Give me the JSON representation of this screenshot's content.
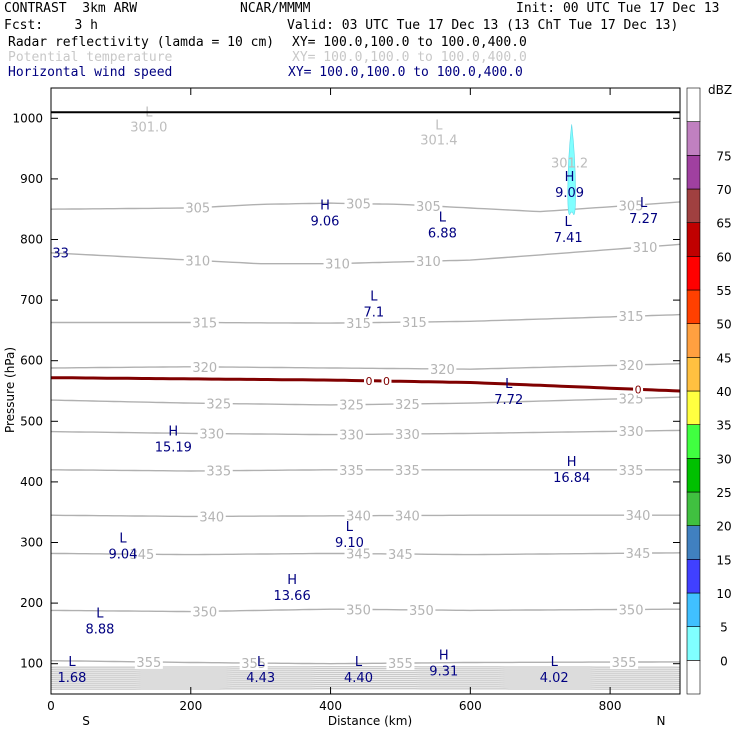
{
  "header": {
    "model": "CONTRAST  3km ARW",
    "center": "NCAR/MMMM",
    "init": "Init: 00 UTC Tue 17 Dec 13",
    "fcst": "Fcst:    3 h",
    "valid": "Valid: 03 UTC Tue 17 Dec 13 (13 ChT Tue 17 Dec 13)",
    "fields": [
      {
        "name": "Radar reflectivity (lamda = 10 cm)",
        "xy": "XY= 100.0,100.0 to 100.0,400.0",
        "color": "#000000"
      },
      {
        "name": "Potential temperature",
        "xy": "XY= 100.0,100.0 to 100.0,400.0",
        "color": "#c0c0c0"
      },
      {
        "name": "Horizontal wind speed",
        "xy": "XY= 100.0,100.0 to 100.0,400.0",
        "color": "#000080"
      }
    ]
  },
  "chart_data": {
    "type": "cross-section",
    "xlabel": "Distance (km)",
    "ylabel": "Pressure (hPa)",
    "xlim": [
      0,
      900
    ],
    "ylim": [
      1050,
      50
    ],
    "x_ticks": [
      0,
      200,
      400,
      600,
      800
    ],
    "y_ticks": [
      100,
      200,
      300,
      400,
      500,
      600,
      700,
      800,
      900,
      1000
    ],
    "x_end_labels": {
      "left": "S",
      "right": "N"
    },
    "theta_isolines": [
      {
        "label": "355",
        "points": [
          [
            0,
            105
          ],
          [
            200,
            102
          ],
          [
            400,
            100
          ],
          [
            600,
            102
          ],
          [
            900,
            103
          ]
        ],
        "label_x": [
          140,
          290,
          500,
          820
        ]
      },
      {
        "label": "350",
        "points": [
          [
            0,
            188
          ],
          [
            200,
            186
          ],
          [
            400,
            190
          ],
          [
            600,
            188
          ],
          [
            900,
            190
          ]
        ],
        "label_x": [
          220,
          440,
          530,
          830
        ]
      },
      {
        "label": "345",
        "points": [
          [
            0,
            282
          ],
          [
            200,
            280
          ],
          [
            400,
            282
          ],
          [
            600,
            280
          ],
          [
            900,
            283
          ]
        ],
        "label_x": [
          130,
          440,
          500,
          840
        ]
      },
      {
        "label": "340",
        "points": [
          [
            0,
            345
          ],
          [
            200,
            343
          ],
          [
            400,
            344
          ],
          [
            600,
            345
          ],
          [
            900,
            345
          ]
        ],
        "label_x": [
          230,
          440,
          510,
          840
        ]
      },
      {
        "label": "335",
        "points": [
          [
            0,
            420
          ],
          [
            200,
            418
          ],
          [
            400,
            420
          ],
          [
            600,
            420
          ],
          [
            900,
            420
          ]
        ],
        "label_x": [
          240,
          430,
          510,
          830
        ]
      },
      {
        "label": "330",
        "points": [
          [
            0,
            483
          ],
          [
            200,
            480
          ],
          [
            400,
            478
          ],
          [
            600,
            480
          ],
          [
            900,
            485
          ]
        ],
        "label_x": [
          230,
          430,
          510,
          830
        ]
      },
      {
        "label": "325",
        "points": [
          [
            0,
            535
          ],
          [
            200,
            530
          ],
          [
            400,
            527
          ],
          [
            600,
            530
          ],
          [
            900,
            540
          ]
        ],
        "label_x": [
          240,
          430,
          510,
          830
        ]
      },
      {
        "label": "320",
        "points": [
          [
            0,
            588
          ],
          [
            200,
            590
          ],
          [
            400,
            588
          ],
          [
            600,
            586
          ],
          [
            900,
            595
          ]
        ],
        "label_x": [
          220,
          560,
          830
        ]
      },
      {
        "label": "315",
        "points": [
          [
            0,
            663
          ],
          [
            200,
            663
          ],
          [
            400,
            662
          ],
          [
            600,
            665
          ],
          [
            900,
            676
          ]
        ],
        "label_x": [
          220,
          440,
          520,
          830
        ]
      },
      {
        "label": "310",
        "points": [
          [
            0,
            778
          ],
          [
            200,
            766
          ],
          [
            300,
            760
          ],
          [
            400,
            760
          ],
          [
            600,
            766
          ],
          [
            900,
            792
          ]
        ],
        "label_x": [
          210,
          410,
          540,
          850
        ]
      },
      {
        "label": "305",
        "points": [
          [
            0,
            850
          ],
          [
            200,
            852
          ],
          [
            300,
            858
          ],
          [
            400,
            860
          ],
          [
            500,
            858
          ],
          [
            600,
            852
          ],
          [
            700,
            846
          ],
          [
            900,
            862
          ]
        ],
        "label_x": [
          210,
          440,
          540,
          830
        ]
      }
    ],
    "freezing_line": {
      "label": "0",
      "points": [
        [
          0,
          572
        ],
        [
          200,
          570
        ],
        [
          400,
          568
        ],
        [
          600,
          564
        ],
        [
          900,
          550
        ]
      ],
      "label_x": [
        455,
        480,
        840
      ]
    },
    "reflectivity_echo": {
      "x": 745,
      "p_top": 845,
      "p_bottom": 990,
      "dbz": 5,
      "color": "#80ffff"
    },
    "wind_extrema": [
      {
        "kind": "L",
        "value": "1.68",
        "x": 30,
        "p": 90
      },
      {
        "kind": "L",
        "value": "4.43",
        "x": 300,
        "p": 90
      },
      {
        "kind": "L",
        "value": "4.40",
        "x": 440,
        "p": 90
      },
      {
        "kind": "H",
        "value": "9.31",
        "x": 562,
        "p": 100
      },
      {
        "kind": "L",
        "value": "4.02",
        "x": 720,
        "p": 90
      },
      {
        "kind": "L",
        "value": "8.88",
        "x": 70,
        "p": 170
      },
      {
        "kind": "H",
        "value": "13.66",
        "x": 345,
        "p": 225
      },
      {
        "kind": "L",
        "value": "9.04",
        "x": 103,
        "p": 293
      },
      {
        "kind": "L",
        "value": "9.10",
        "x": 427,
        "p": 312
      },
      {
        "kind": "H",
        "value": "16.84",
        "x": 745,
        "p": 420
      },
      {
        "kind": "H",
        "value": "15.19",
        "x": 175,
        "p": 470
      },
      {
        "kind": "L",
        "value": "7.72",
        "x": 655,
        "p": 548
      },
      {
        "kind": "L",
        "value": "7.1",
        "x": 462,
        "p": 693
      },
      {
        "kind": "L",
        "value": "6.88",
        "x": 560,
        "p": 823
      },
      {
        "kind": "L",
        "value": "7.41",
        "x": 740,
        "p": 816
      },
      {
        "kind": "H",
        "value": "9.06",
        "x": 392,
        "p": 843
      },
      {
        "kind": "L",
        "value": "7.27",
        "x": 848,
        "p": 847
      },
      {
        "kind": "H",
        "value": "9.09",
        "x": 742,
        "p": 890
      },
      {
        "kind": "",
        "value": "33",
        "x": 2,
        "p": 790
      }
    ],
    "theta_extrema": [
      {
        "kind": "",
        "value": "301.2",
        "x": 742,
        "p": 940
      },
      {
        "kind": "L",
        "value": "301.0",
        "x": 140,
        "p": 1000
      },
      {
        "kind": "L",
        "value": "301.4",
        "x": 555,
        "p": 978
      }
    ],
    "ground_level_hpa": 1010,
    "colorbar": {
      "label": "dBZ",
      "ticks": [
        "0",
        "5",
        "10",
        "15",
        "20",
        "25",
        "30",
        "35",
        "40",
        "45",
        "50",
        "55",
        "60",
        "65",
        "70",
        "75"
      ],
      "colors": [
        "#ffffff",
        "#80ffff",
        "#40c0ff",
        "#4040ff",
        "#4080c0",
        "#40c040",
        "#00c000",
        "#40ff40",
        "#ffff40",
        "#ffc040",
        "#ffa040",
        "#ff4000",
        "#ff0000",
        "#c00000",
        "#a04040",
        "#a040a0",
        "#c080c0",
        "#ffffff"
      ]
    }
  }
}
